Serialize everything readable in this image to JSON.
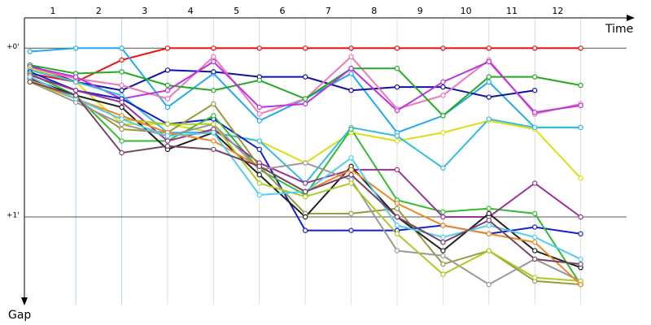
{
  "chart_data": {
    "type": "line",
    "x_title": "Time",
    "y_title": "Gap",
    "categories": [
      "1",
      "2",
      "3",
      "4",
      "5",
      "6",
      "7",
      "8",
      "9",
      "10",
      "11",
      "12"
    ],
    "x": [
      0,
      1,
      2,
      3,
      4,
      5,
      6,
      7,
      8,
      9,
      10,
      11,
      12
    ],
    "xlim": [
      -0.12,
      13
    ],
    "ylim": [
      -0.17,
      1.52
    ],
    "yticks": [
      {
        "value": 0,
        "label": "+0'"
      },
      {
        "value": 1,
        "label": "+1'"
      }
    ],
    "grid": true,
    "series": [
      {
        "color": "#ee1111",
        "values": [
          0.15,
          0.2,
          0.07,
          0,
          0,
          0,
          0,
          0,
          0,
          0,
          0,
          0,
          0
        ]
      },
      {
        "color": "#22aaee",
        "values": [
          0.02,
          0,
          0,
          0.35,
          0.15,
          0.43,
          0.3,
          0.15,
          0.5,
          0.4,
          0.2,
          0.47,
          0.47
        ]
      },
      {
        "color": "#1111aa",
        "values": [
          0.1,
          0.2,
          0.25,
          0.13,
          0.14,
          0.17,
          0.17,
          0.25,
          0.23,
          0.23,
          0.29,
          0.25,
          null
        ]
      },
      {
        "color": "#ee77bb",
        "values": [
          0.12,
          0.18,
          0.22,
          0.3,
          0.05,
          0.39,
          0.3,
          0.05,
          0.36,
          0.28,
          0.07,
          0.39,
          0.33
        ]
      },
      {
        "color": "#22aa22",
        "values": [
          0.1,
          0.15,
          0.14,
          0.22,
          0.25,
          0.19,
          0.3,
          0.12,
          0.12,
          0.4,
          0.17,
          0.17,
          0.22
        ]
      },
      {
        "color": "#bb33dd",
        "values": [
          0.11,
          0.17,
          0.3,
          0.25,
          0.08,
          0.35,
          0.33,
          0.12,
          0.37,
          0.2,
          0.08,
          0.38,
          0.34
        ]
      },
      {
        "color": "#dddd11",
        "values": [
          0.12,
          0.2,
          0.45,
          0.45,
          0.5,
          0.55,
          0.68,
          0.5,
          0.55,
          0.5,
          0.43,
          0.48,
          0.77
        ]
      },
      {
        "color": "#33bbdd",
        "values": [
          0.13,
          0.2,
          0.28,
          0.5,
          0.5,
          0.55,
          0.8,
          0.47,
          0.52,
          0.71,
          0.42,
          0.47,
          0.47
        ]
      },
      {
        "color": "#1122cc",
        "values": [
          0.14,
          0.25,
          0.3,
          0.45,
          0.42,
          0.6,
          1.08,
          1.08,
          1.08,
          1.05,
          1.1,
          1.06,
          1.1
        ]
      },
      {
        "color": "#33bb33",
        "values": [
          0.15,
          0.28,
          0.55,
          0.55,
          0.4,
          0.72,
          0.87,
          0.48,
          0.9,
          0.97,
          0.95,
          0.98,
          1.4
        ]
      },
      {
        "color": "#993399",
        "values": [
          0.16,
          0.25,
          0.32,
          0.55,
          0.48,
          0.68,
          0.8,
          0.72,
          0.72,
          1.0,
          1.0,
          0.8,
          1.0
        ]
      },
      {
        "color": "#999944",
        "values": [
          0.17,
          0.3,
          0.48,
          0.5,
          0.33,
          0.7,
          0.98,
          0.98,
          0.95,
          1.28,
          1.2,
          1.38,
          1.4
        ]
      },
      {
        "color": "#222222",
        "values": [
          0.18,
          0.28,
          0.35,
          0.6,
          0.5,
          0.75,
          1.0,
          0.7,
          1.0,
          1.2,
          0.98,
          1.2,
          1.3
        ]
      },
      {
        "color": "#999999",
        "values": [
          0.2,
          0.32,
          0.45,
          0.52,
          0.45,
          0.72,
          0.68,
          0.78,
          1.2,
          1.23,
          1.4,
          1.25,
          1.38
        ]
      },
      {
        "color": "#aacc22",
        "values": [
          0.2,
          0.3,
          0.42,
          0.45,
          0.45,
          0.8,
          0.88,
          0.8,
          1.1,
          1.34,
          1.2,
          1.36,
          1.38
        ]
      },
      {
        "color": "#ee8822",
        "values": [
          0.19,
          0.3,
          0.4,
          0.5,
          0.55,
          0.7,
          0.85,
          0.72,
          0.92,
          1.05,
          1.1,
          1.15,
          1.4
        ]
      },
      {
        "color": "#55ccee",
        "values": [
          0.17,
          0.3,
          0.42,
          0.52,
          0.5,
          0.87,
          0.85,
          0.65,
          1.05,
          1.12,
          1.05,
          1.12,
          1.25
        ]
      },
      {
        "color": "#774466",
        "values": [
          0.2,
          0.28,
          0.62,
          0.58,
          0.6,
          0.7,
          0.85,
          0.75,
          1.0,
          1.15,
          1.02,
          1.25,
          1.28
        ]
      }
    ]
  }
}
